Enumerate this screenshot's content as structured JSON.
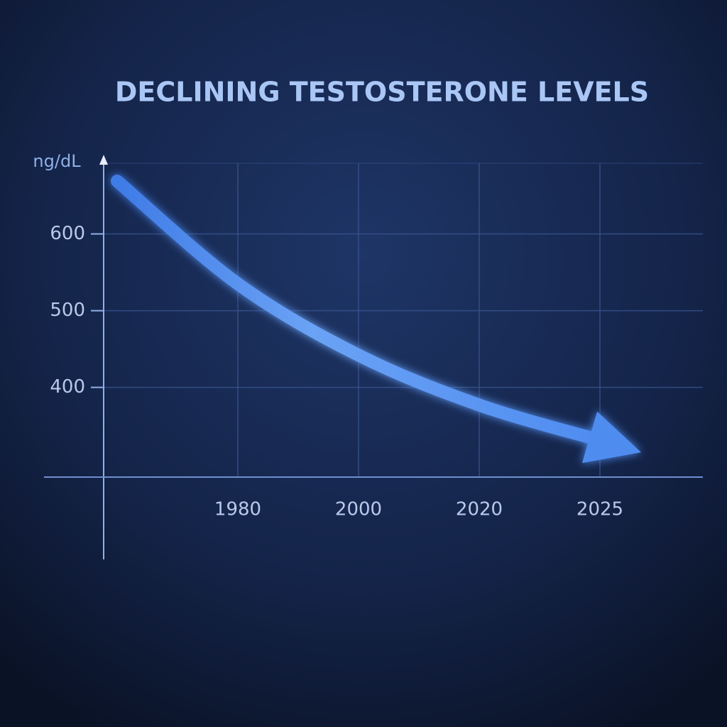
{
  "chart_data": {
    "type": "line",
    "title": "DECLINING TESTOSTERONE LEVELS",
    "y_label": "ng/dL",
    "categories": [
      null,
      "1980",
      "2000",
      "2020",
      "2025"
    ],
    "values": [
      669,
      535,
      442,
      377,
      331
    ],
    "color": "#5b93f0",
    "ylim": [
      283,
      694
    ],
    "yticks": [
      400,
      500,
      600
    ],
    "grid": true
  }
}
